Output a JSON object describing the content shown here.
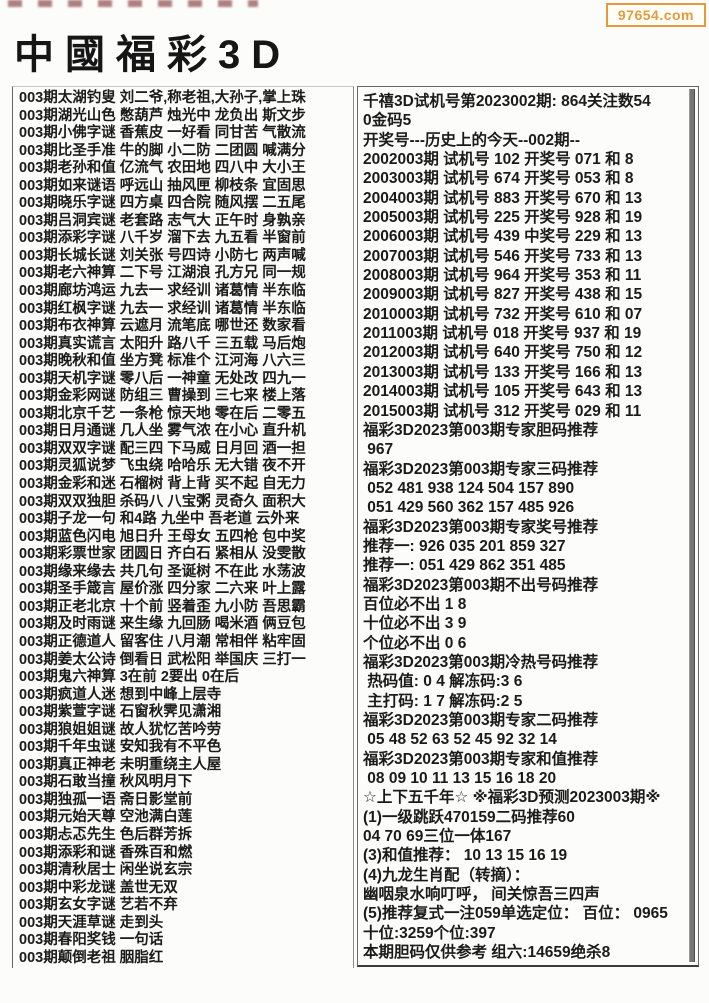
{
  "watermark": {
    "label": "97654.com"
  },
  "header": {
    "title": "中國福彩3D"
  },
  "left_column": {
    "rows": [
      "003期太湖钓叟 刘二爷,称老祖,大孙子,掌上珠",
      "003期湖光山色 憋葫芦 烛光中 龙负出 斯文步",
      "003期小佛字谜 香蕉皮 一好看 同甘苦 气散流",
      "003期比圣手准 牛的脚 小二防 二团圆 喊满分",
      "003期老孙和值 亿流气 农田地 四八中 大小王",
      "003期如来谜语 呼远山 抽风匣 柳枝条 宜固思",
      "003期晓乐字谜 四方桌 四合院 随风摆 二五尾",
      "003期吕洞宾谜 老套路 志气大 正午时 身孰亲",
      "003期添彩字谜 八千岁 溜下去 九五看 半窗前",
      "003期长城长谜 刘关张 号四诗 小防七 两声喊",
      "003期老六神算 二下号 江湖浪 孔方兄 同一规",
      "003期廊坊鸿运 九去一 求经训 诸葛情 半东临",
      "003期红枫字谜 九去一 求经训 诸葛情 半东临",
      "003期布衣神算 云遮月 流笔底 哪世还 数家看",
      "003期真实谎言 太阳升 路八千 三五载 马后炮",
      "003期晚秋和值 坐方凳 标准个 江河海 八六三",
      "003期天机字谜 零八后 一神童 无处改 四九一",
      "003期金彩网谜 防组三 曹操到 三七来 楼上落",
      "003期北京千艺 一条枪 惊天地 零在后 二零五",
      "003期日月通谜 几人坐 雾气浓 在小心 直升机",
      "003期双双字谜 配三四 下马威 日月回 酒一担",
      "003期灵狐说梦 飞虫绕 哈哈乐 无大错 夜不开",
      "003期金彩和迷 石榴树 背上背 买不起 自无力",
      "003期双双独胆 杀码八 八宝粥 灵奇久 面积大",
      "003期子龙一句 和4路 九坐中 吾老道 云外来",
      "003期蓝色闪电 旭日升 王母女 五四枪 包中奖",
      "003期彩票世家 团圆日 齐白石 紧相从 没雯散",
      "003期缘来缘去 共几句 圣诞树 不在此 水荡波",
      "003期圣手箴言 屋价涨 四分家 二六来 叶上露",
      "003期正老北京 十个前 竖着歪 九小防 吾思霸",
      "003期及时雨谜 来生缘 九回肠 喝米酒 俩豆包",
      "003期正德道人 留客住 八月潮 常相伴 粘牢固",
      "003期姜太公诗 倒看日 武松阳 举国庆 三打一",
      "003期鬼六神算 3在前 2要出 0在后",
      "003期疯道人迷 想到中峰上层寺",
      "003期紫萱字谜 石窗秋霁见潇湘",
      "003期狼姐姐谜 故人犹忆苦吟劳",
      "003期千年虫谜 安知我有不平色",
      "003期真正神老 未明重绕主人屋",
      "003期石敢当撞 秋风明月下",
      "003期独孤一语 斋日影堂前",
      "003期元始天尊 空池满白莲",
      "003期忐忑先生 色后群芳拆",
      "003期添彩和谜 香殊百和燃",
      "003期清秋居士 闲坐说玄宗",
      "003期中彩龙谜 盖世无双",
      "003期玄女字谜 艺若不弃",
      "003期天涯草谜 走到头",
      "003期春阳奖钱 一句话",
      "003期颠倒老祖 胭脂红"
    ]
  },
  "right_column": {
    "lines": [
      "千禧3D试机号第2023002期: 864关注数54",
      "0金码5",
      "开奖号---历史上的今天--002期--",
      "2002003期 试机号 102 开奖号 071 和 8",
      "2003003期 试机号 674 开奖号 053 和 8",
      "2004003期 试机号 883 开奖号 670 和 13",
      "2005003期 试机号 225 开奖号 928 和 19",
      "2006003期 试机号 439 中奖号 229 和 13",
      "2007003期 试机号 546 开奖号 733 和 13",
      "2008003期 试机号 964 开奖号 353 和 11",
      "2009003期 试机号 827 开奖号 438 和 15",
      "2010003期 试机号 732 开奖号 610 和 07",
      "2011003期 试机号 018 开奖号 937 和 19",
      "2012003期 试机号 640 开奖号 750 和 12",
      "2013003期 试机号 133 开奖号 166 和 13",
      "2014003期 试机号 105 开奖号 643 和 13",
      "2015003期 试机号 312 开奖号 029 和 11",
      "福彩3D2023第003期专家胆码推荐",
      " 967",
      "福彩3D2023第003期专家三码推荐",
      " 052 481 938 124 504 157 890",
      " 051 429 560 362 157 485 926",
      "福彩3D2023第003期专家奖号推荐",
      "推荐一: 926 035 201 859 327",
      "推荐一: 051 429 862 351 485",
      "福彩3D2023第003期不出号码推荐",
      "百位必不出 1 8",
      "十位必不出 3 9",
      "个位必不出 0 6",
      "福彩3D2023第003期冷热号码推荐",
      " 热码值: 0 4 解冻码:3 6",
      " 主打码: 1 7 解冻码:2 5",
      "福彩3D2023第003期专家二码推荐",
      " 05 48 52 63 52 45 92 32 14",
      "福彩3D2023第003期专家和值推荐",
      " 08 09 10 11 13 15 16 18 20",
      "☆上下五千年☆ ※福彩3D预测2023003期※",
      "(1)一级跳跃470159二码推荐60",
      "04 70 69三位一体167",
      "(3)和值推荐： 10 13 15 16 19",
      "(4)九龙生肖配（转摘）：",
      "幽咽泉水响叮呼， 间关惊吾三四声",
      "(5)推荐复式一注059单选定位： 百位： 0965",
      "十位:3259个位:397",
      "本期胆码仅供参考 组六:14659绝杀8"
    ]
  },
  "colors": {
    "accent_orange": "#E79A3C",
    "text": "#1B1B1B",
    "panel_border": "#666666",
    "scrollbar_thumb": "#757575"
  }
}
